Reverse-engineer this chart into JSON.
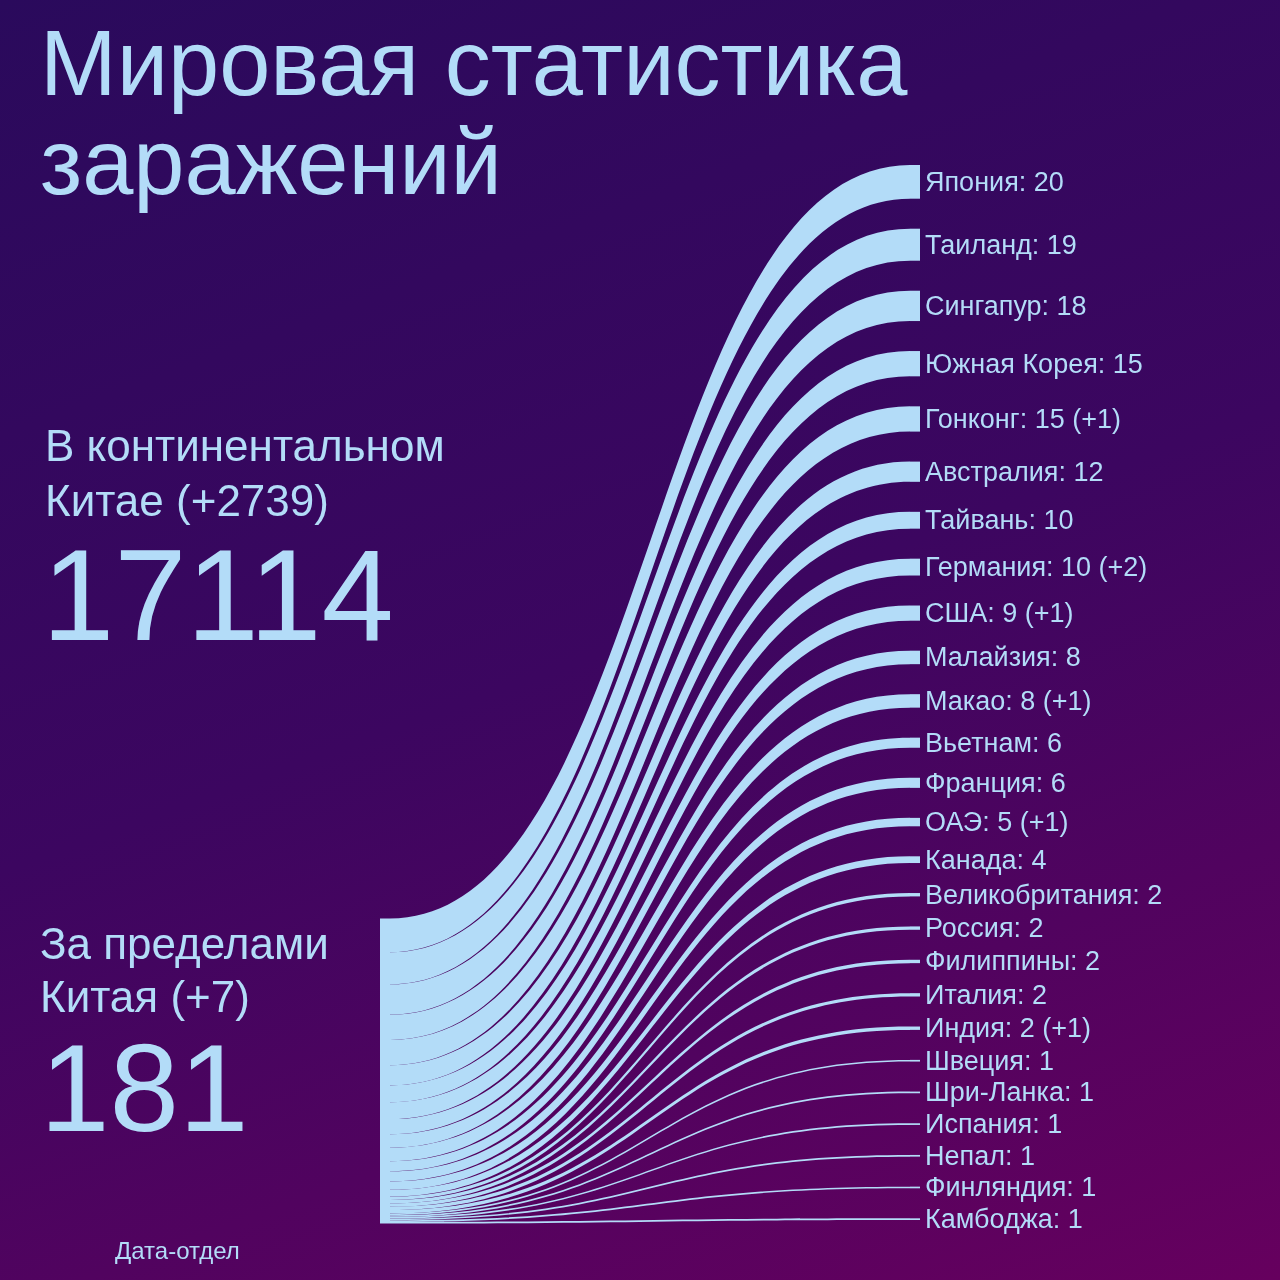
{
  "chart_data": {
    "type": "other",
    "title": "Мировая статистика заражений",
    "categories": [
      "Япония",
      "Таиланд",
      "Сингапур",
      "Южная Корея",
      "Гонконг",
      "Австралия",
      "Тайвань",
      "Германия",
      "США",
      "Малайзия",
      "Макао",
      "Вьетнам",
      "Франция",
      "ОАЭ",
      "Канада",
      "Великобритания",
      "Россия",
      "Филиппины",
      "Италия",
      "Индия",
      "Швеция",
      "Шри-Ланка",
      "Испания",
      "Непал",
      "Финляндия",
      "Камбоджа"
    ],
    "values": [
      20,
      19,
      18,
      15,
      15,
      12,
      10,
      10,
      9,
      8,
      8,
      6,
      6,
      5,
      4,
      2,
      2,
      2,
      2,
      2,
      1,
      1,
      1,
      1,
      1,
      1
    ],
    "value_labels": [
      ": 20",
      ": 19",
      ": 18",
      ": 15",
      ": 15 (+1)",
      ": 12",
      ": 10",
      ": 10 (+2)",
      ": 9 (+1)",
      ": 8",
      ": 8 (+1)",
      ": 6",
      ": 6",
      ": 5 (+1)",
      ": 4",
      ": 2",
      ": 2",
      ": 2",
      ": 2",
      ": 2 (+1)",
      ": 1",
      ": 1",
      ": 1",
      ": 1",
      ": 1",
      ": 1"
    ],
    "color": "#b3dcf8",
    "annotations": [
      "В континентальном Китае (+2739)",
      "17114",
      "За пределами Китая (+7)",
      "181",
      "Дата-отдел"
    ]
  }
}
